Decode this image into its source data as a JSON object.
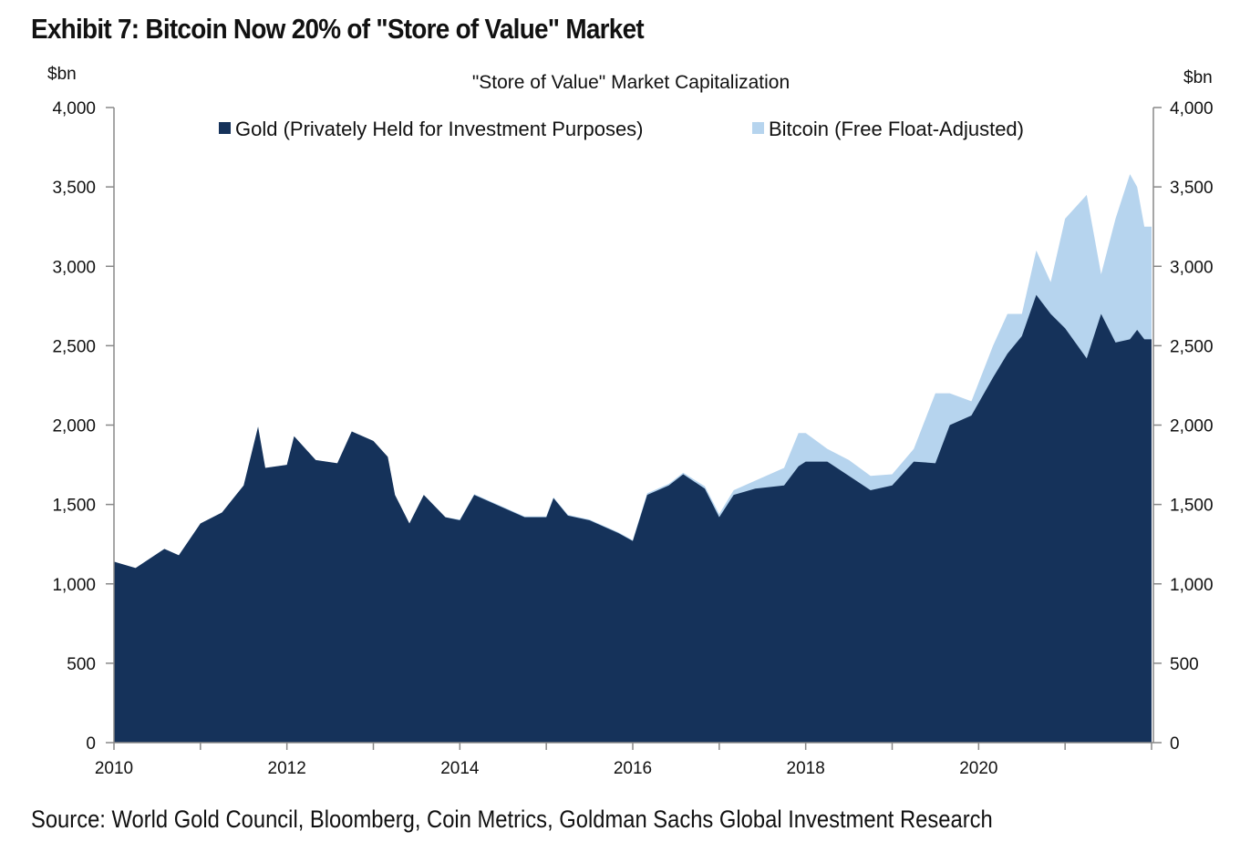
{
  "title": "Exhibit 7: Bitcoin Now 20% of \"Store of Value\" Market",
  "source": "Source: World Gold Council, Bloomberg, Coin Metrics, Goldman Sachs Global Investment Research",
  "chart_data": {
    "type": "area",
    "stacked": true,
    "title": "\"Store of Value\" Market Capitalization",
    "ylabel_left": "$bn",
    "ylabel_right": "$bn",
    "ylim": [
      0,
      4000
    ],
    "yticks": [
      "0",
      "500",
      "1,000",
      "1,500",
      "2,000",
      "2,500",
      "3,000",
      "3,500",
      "4,000"
    ],
    "ytick_values": [
      0,
      500,
      1000,
      1500,
      2000,
      2500,
      3000,
      3500,
      4000
    ],
    "xlim": [
      "2010-01",
      "2022-01"
    ],
    "xticks": [
      "2010",
      "2012",
      "2014",
      "2016",
      "2018",
      "2020"
    ],
    "grid": false,
    "legend_placement": "top",
    "colors": {
      "gold": "#15325a",
      "bitcoin": "#b6d4ee"
    },
    "x": [
      "2010-01",
      "2010-04",
      "2010-08",
      "2010-10",
      "2011-01",
      "2011-04",
      "2011-07",
      "2011-09",
      "2011-10",
      "2012-01",
      "2012-02",
      "2012-05",
      "2012-08",
      "2012-10",
      "2013-01",
      "2013-03",
      "2013-04",
      "2013-06",
      "2013-08",
      "2013-11",
      "2014-01",
      "2014-03",
      "2014-06",
      "2014-10",
      "2015-01",
      "2015-02",
      "2015-04",
      "2015-07",
      "2015-11",
      "2016-01",
      "2016-03",
      "2016-06",
      "2016-08",
      "2016-11",
      "2017-01",
      "2017-03",
      "2017-06",
      "2017-10",
      "2017-12",
      "2018-01",
      "2018-04",
      "2018-07",
      "2018-10",
      "2019-01",
      "2019-04",
      "2019-07",
      "2019-09",
      "2019-12",
      "2020-03",
      "2020-05",
      "2020-07",
      "2020-09",
      "2020-11",
      "2021-01",
      "2021-04",
      "2021-06",
      "2021-08",
      "2021-10",
      "2021-11",
      "2021-12"
    ],
    "series": [
      {
        "name": "Gold (Privately Held for Investment Purposes)",
        "values": [
          1140,
          1100,
          1220,
          1180,
          1380,
          1450,
          1620,
          1990,
          1730,
          1750,
          1930,
          1780,
          1760,
          1960,
          1900,
          1800,
          1560,
          1380,
          1560,
          1420,
          1400,
          1560,
          1500,
          1420,
          1420,
          1540,
          1430,
          1400,
          1320,
          1270,
          1560,
          1620,
          1690,
          1600,
          1420,
          1560,
          1600,
          1620,
          1740,
          1770,
          1770,
          1680,
          1590,
          1620,
          1770,
          1760,
          2000,
          2060,
          2300,
          2450,
          2560,
          2820,
          2700,
          2610,
          2420,
          2700,
          2520,
          2540,
          2600,
          2540
        ]
      },
      {
        "name": "Bitcoin (Free Float-Adjusted)",
        "values": [
          0,
          0,
          0,
          0,
          0,
          0,
          0,
          0,
          0,
          0,
          0,
          0,
          0,
          0,
          0,
          0,
          0,
          0,
          0,
          0,
          5,
          5,
          5,
          5,
          5,
          5,
          5,
          5,
          5,
          5,
          10,
          10,
          10,
          15,
          20,
          30,
          50,
          110,
          210,
          180,
          80,
          100,
          90,
          70,
          80,
          440,
          200,
          90,
          200,
          250,
          140,
          280,
          200,
          690,
          1030,
          250,
          780,
          1040,
          900,
          710
        ]
      }
    ]
  }
}
